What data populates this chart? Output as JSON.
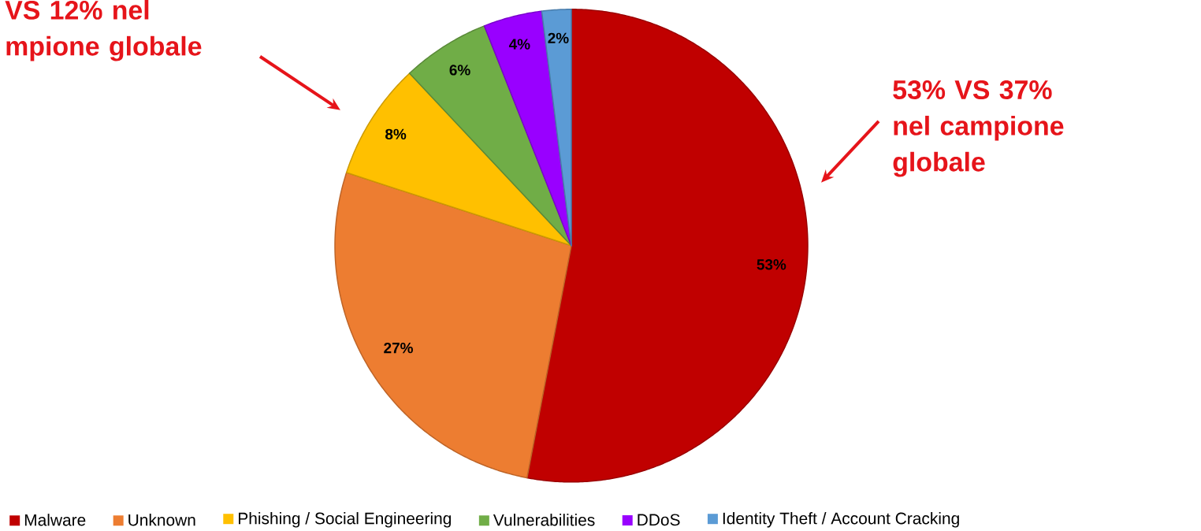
{
  "chart_data": {
    "type": "pie",
    "categories": [
      "Malware",
      "Unknown",
      "Phishing / Social Engineering",
      "Vulnerabilities",
      "DDoS",
      "Identity Theft / Account Cracking"
    ],
    "values": [
      53,
      27,
      8,
      6,
      4,
      2
    ],
    "colors": [
      "#c00000",
      "#ed7d31",
      "#ffc000",
      "#70ad47",
      "#9900ff",
      "#5b9bd5"
    ],
    "value_labels": [
      "53%",
      "27%",
      "8%",
      "6%",
      "4%",
      "2%"
    ],
    "legend": "bottom",
    "annotations": [
      "VS 12% nel mpione globale",
      "53% VS 37% nel campione globale"
    ]
  }
}
